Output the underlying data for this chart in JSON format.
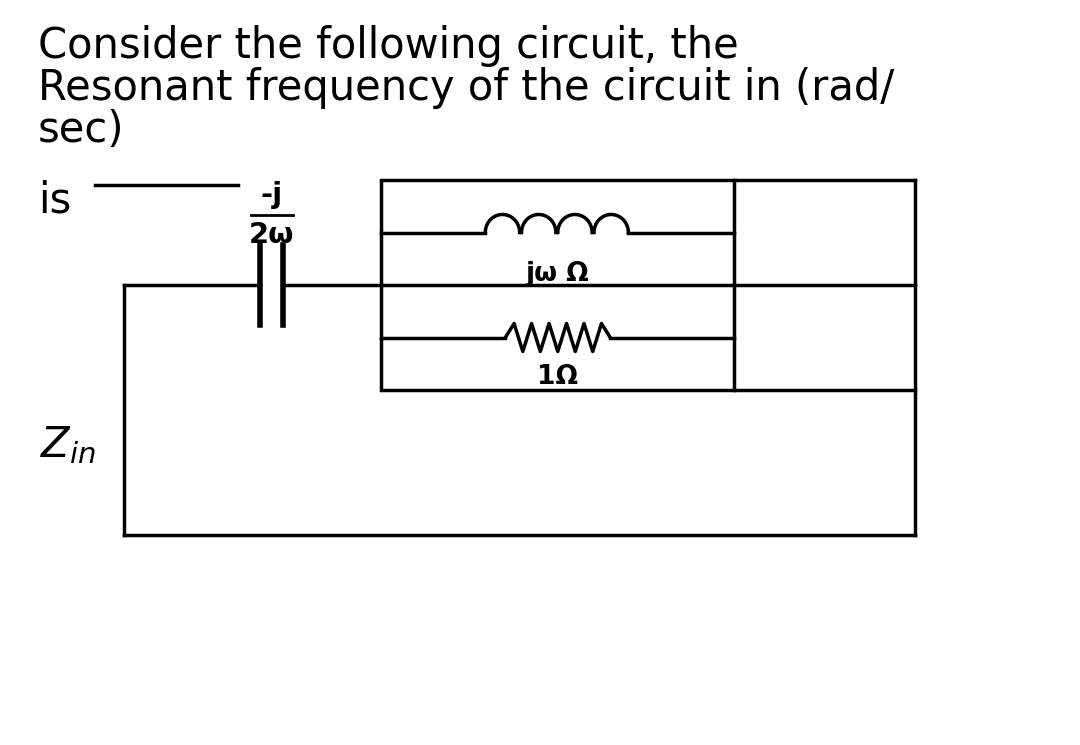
{
  "title_line1": "Consider the following circuit, the",
  "title_line2": "Resonant frequency of the circuit in (rad/",
  "title_line3": "sec)",
  "bg_color": "#ffffff",
  "text_color": "#000000",
  "line_color": "#000000",
  "title_fontsize": 30,
  "circuit_fontsize": 19
}
